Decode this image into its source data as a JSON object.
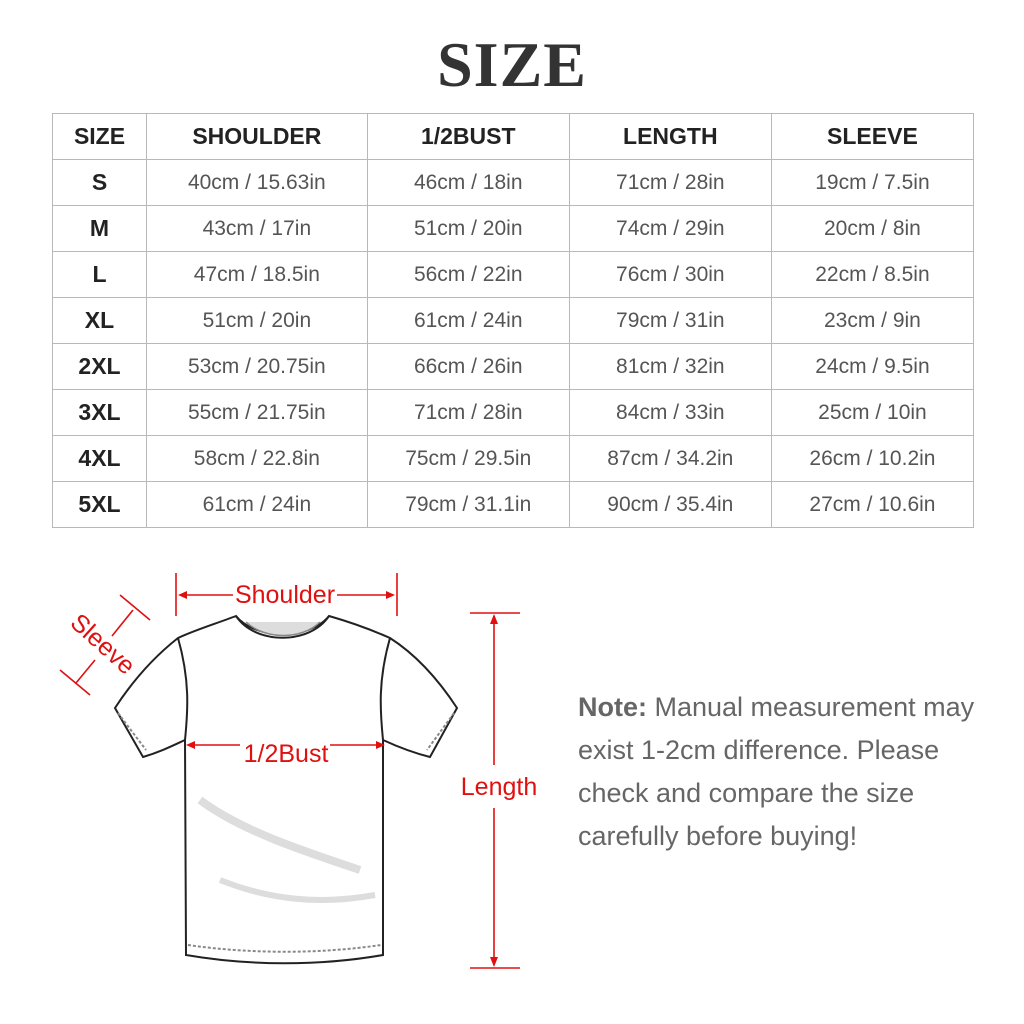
{
  "title": "SIZE",
  "table": {
    "headers": [
      "SIZE",
      "SHOULDER",
      "1/2BUST",
      "LENGTH",
      "SLEEVE"
    ],
    "rows": [
      [
        "S",
        "40cm / 15.63in",
        "46cm / 18in",
        "71cm / 28in",
        "19cm / 7.5in"
      ],
      [
        "M",
        "43cm / 17in",
        "51cm / 20in",
        "74cm / 29in",
        "20cm / 8in"
      ],
      [
        "L",
        "47cm / 18.5in",
        "56cm / 22in",
        "76cm / 30in",
        "22cm / 8.5in"
      ],
      [
        "XL",
        "51cm / 20in",
        "61cm / 24in",
        "79cm / 31in",
        "23cm / 9in"
      ],
      [
        "2XL",
        "53cm / 20.75in",
        "66cm / 26in",
        "81cm / 32in",
        "24cm / 9.5in"
      ],
      [
        "3XL",
        "55cm / 21.75in",
        "71cm / 28in",
        "84cm / 33in",
        "25cm / 10in"
      ],
      [
        "4XL",
        "58cm / 22.8in",
        "75cm / 29.5in",
        "87cm / 34.2in",
        "26cm / 10.2in"
      ],
      [
        "5XL",
        "61cm / 24in",
        "79cm / 31.1in",
        "90cm / 35.4in",
        "27cm / 10.6in"
      ]
    ]
  },
  "diagram": {
    "shoulder_label": "Shoulder",
    "sleeve_label": "Sleeve",
    "bust_label": "1/2Bust",
    "length_label": "Length",
    "annotation_color": "#e01010"
  },
  "note": {
    "label": "Note:",
    "text": " Manual measurement may exist 1-2cm difference. Please check and compare the size carefully before buying!"
  }
}
